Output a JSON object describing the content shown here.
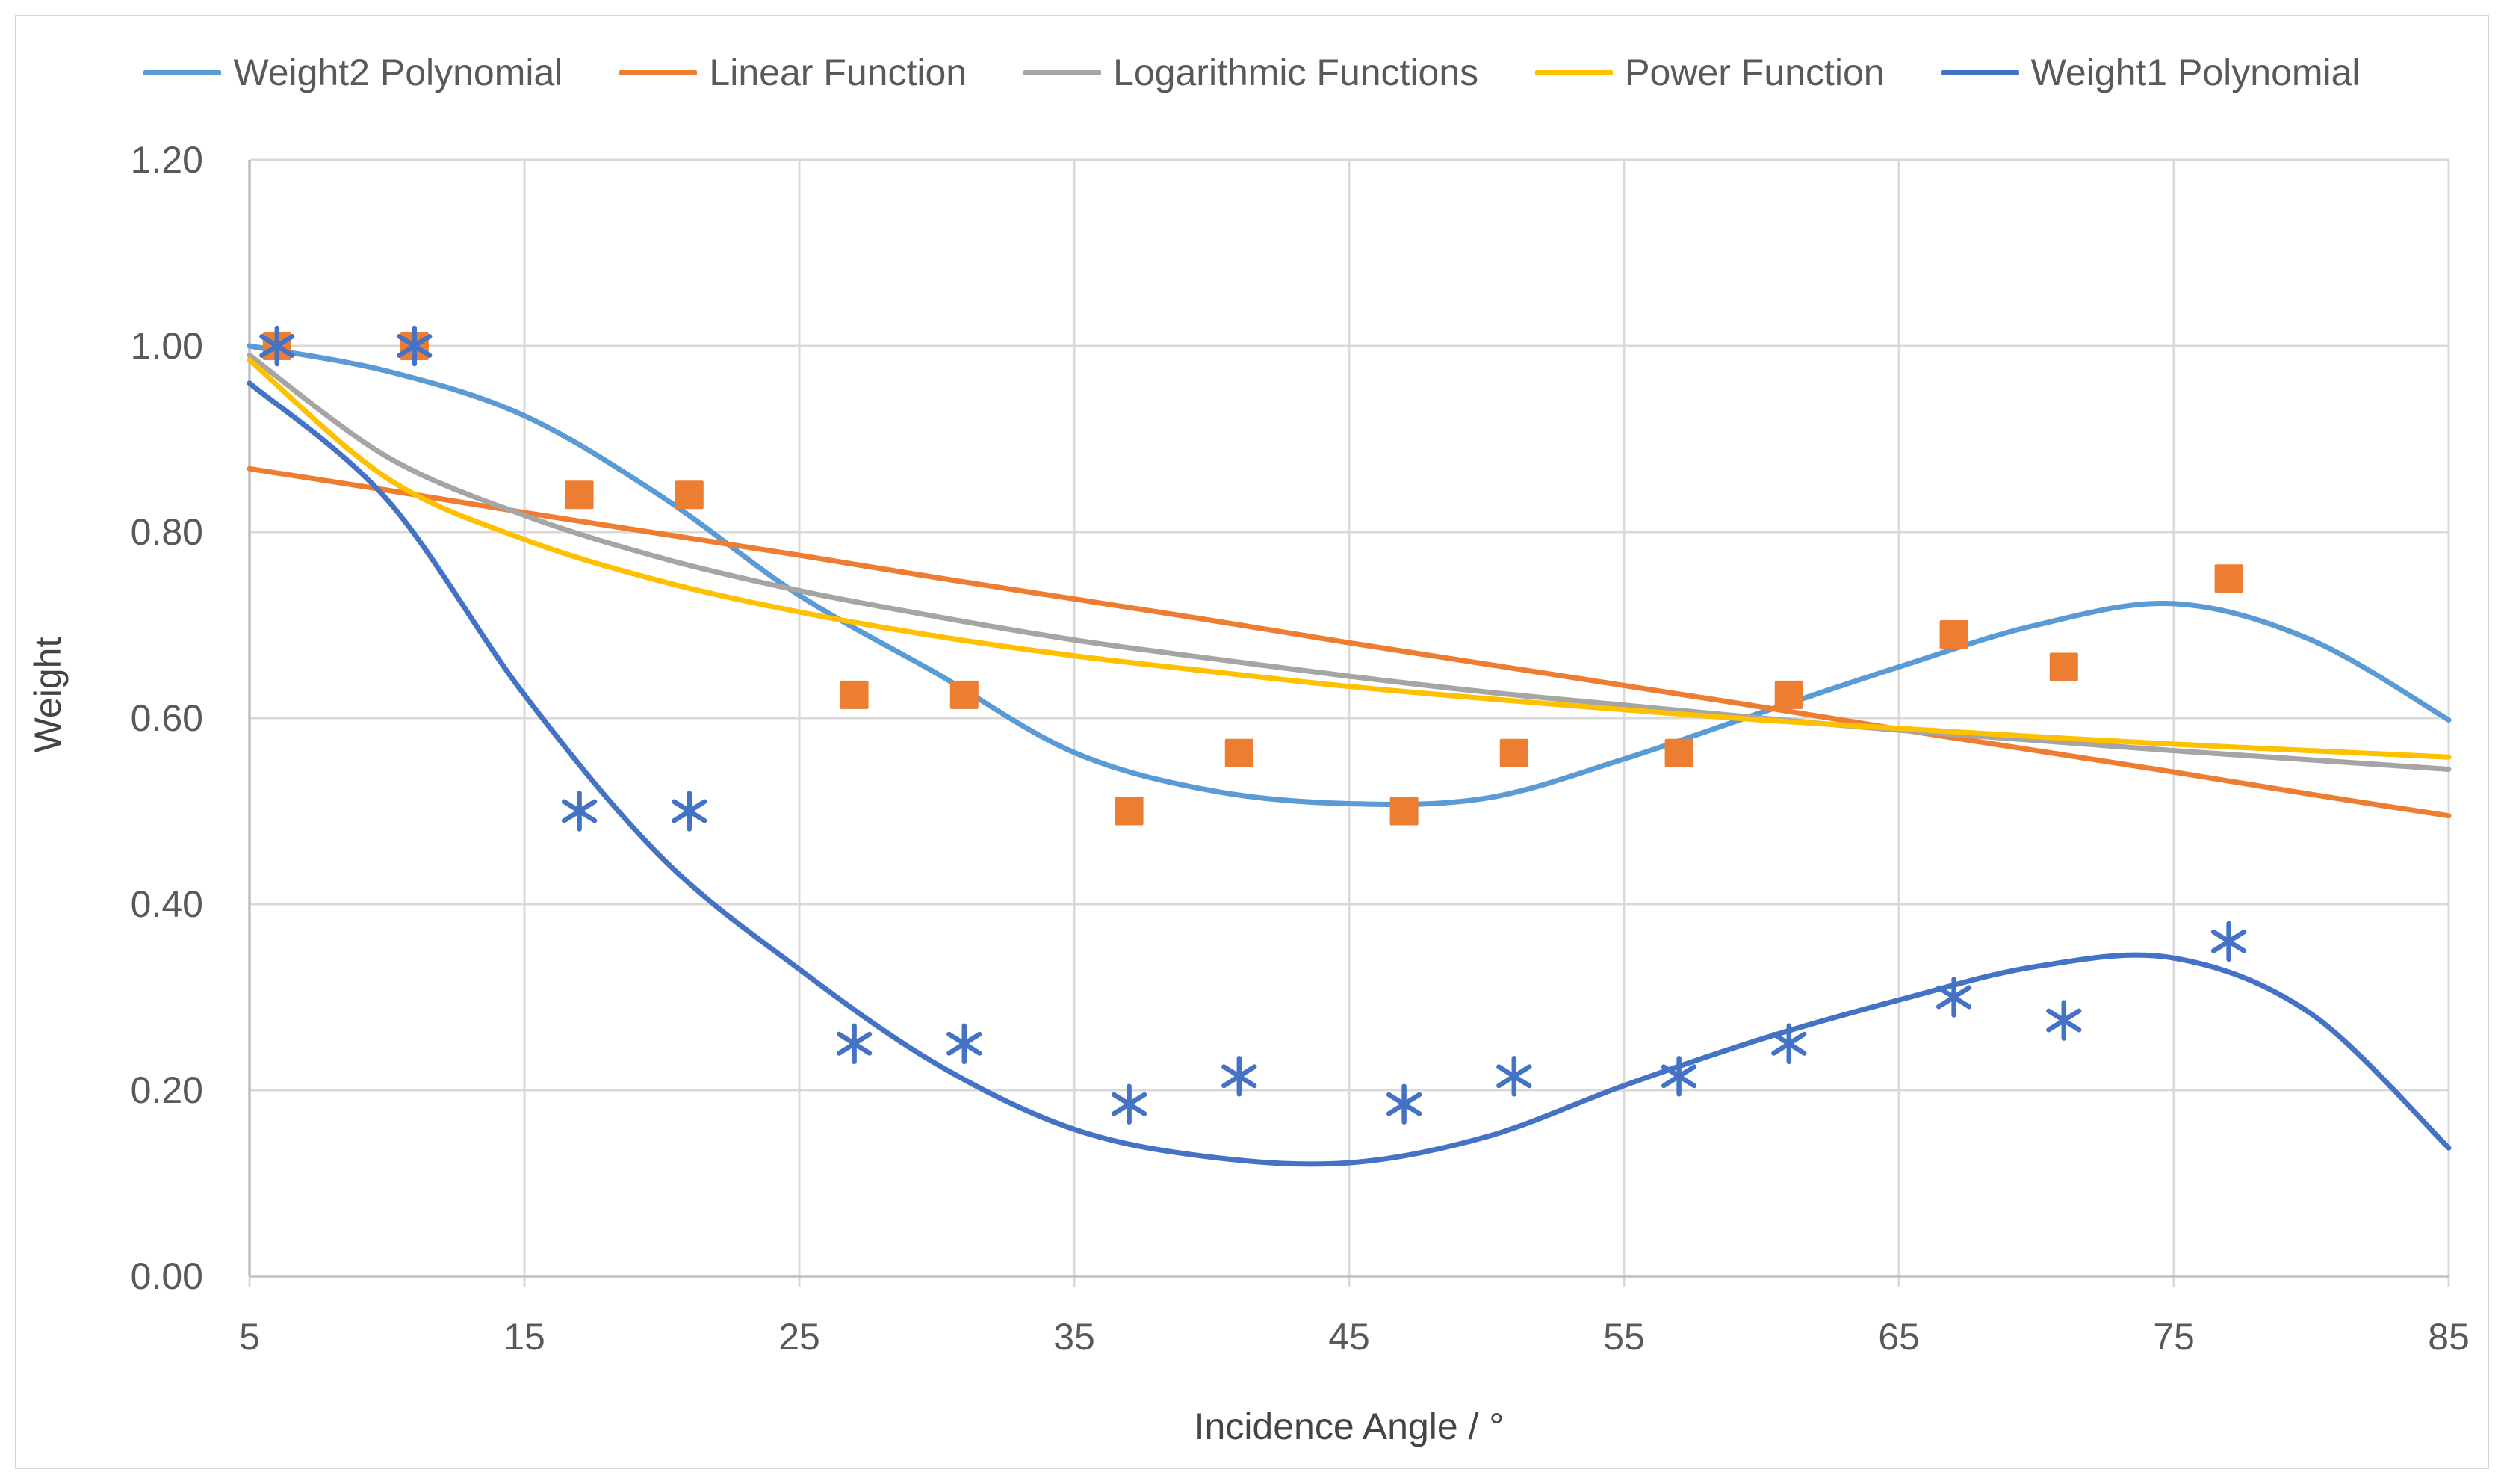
{
  "chart_data": {
    "type": "line",
    "title": "",
    "legend_position": "top",
    "grid": true,
    "x_axis": {
      "title": "Incidence Angle / °",
      "min": 5,
      "max": 85,
      "tick_values": [
        5,
        15,
        25,
        35,
        45,
        55,
        65,
        75,
        85
      ],
      "tick_labels": [
        "5",
        "15",
        "25",
        "35",
        "45",
        "55",
        "65",
        "75",
        "85"
      ]
    },
    "y_axis": {
      "title": "Weight",
      "min": 0.0,
      "max": 1.2,
      "tick_values": [
        1.2,
        1.0,
        0.8,
        0.6,
        0.4,
        0.2,
        0.0
      ],
      "tick_labels": [
        "1.20",
        "1.00",
        "0.80",
        "0.60",
        "0.40",
        "0.20",
        "0.00"
      ]
    },
    "curve_x": [
      5,
      10,
      15,
      20,
      25,
      30,
      35,
      40,
      45,
      50,
      55,
      60,
      65,
      70,
      75,
      80,
      85
    ],
    "series": [
      {
        "id": "weight2-polynomial",
        "name": "Weight2 Polynomial",
        "color": "#5B9BD5",
        "style": "curve",
        "values": [
          1.0,
          0.973,
          0.925,
          0.838,
          0.732,
          0.648,
          0.563,
          0.522,
          0.508,
          0.514,
          0.556,
          0.606,
          0.655,
          0.7,
          0.723,
          0.684,
          0.598
        ]
      },
      {
        "id": "linear-function",
        "name": "Linear Function",
        "color": "#ED7D31",
        "style": "curve",
        "values": [
          0.868,
          0.845,
          0.821,
          0.798,
          0.775,
          0.751,
          0.728,
          0.705,
          0.681,
          0.658,
          0.635,
          0.612,
          0.588,
          0.565,
          0.542,
          0.518,
          0.495
        ]
      },
      {
        "id": "logarithmic-functions",
        "name": "Logarithmic Functions",
        "color": "#A5A5A5",
        "style": "curve",
        "values": [
          0.99,
          0.881,
          0.818,
          0.772,
          0.737,
          0.709,
          0.684,
          0.664,
          0.645,
          0.628,
          0.614,
          0.6,
          0.587,
          0.576,
          0.565,
          0.555,
          0.545
        ]
      },
      {
        "id": "power-function",
        "name": "Power Function",
        "color": "#FFC000",
        "style": "curve",
        "values": [
          0.985,
          0.858,
          0.792,
          0.747,
          0.714,
          0.688,
          0.667,
          0.65,
          0.634,
          0.621,
          0.609,
          0.598,
          0.589,
          0.58,
          0.572,
          0.565,
          0.558
        ]
      },
      {
        "id": "weight1-polynomial",
        "name": "Weight1 Polynomial",
        "color": "#4472C4",
        "style": "curve",
        "values": [
          0.96,
          0.835,
          0.625,
          0.45,
          0.33,
          0.228,
          0.158,
          0.128,
          0.122,
          0.15,
          0.205,
          0.255,
          0.297,
          0.333,
          0.342,
          0.282,
          0.138
        ]
      }
    ],
    "scatter_series": [
      {
        "id": "weight2-data-points",
        "marker": "square",
        "color": "#ED7D31",
        "x": [
          6,
          11,
          17,
          21,
          27,
          31,
          37,
          41,
          47,
          51,
          57,
          61,
          67,
          71,
          77
        ],
        "y": [
          1.0,
          1.0,
          0.84,
          0.84,
          0.625,
          0.625,
          0.5,
          0.5625,
          0.5,
          0.5625,
          0.5625,
          0.625,
          0.69,
          0.655,
          0.75
        ]
      },
      {
        "id": "weight1-data-points",
        "marker": "asterisk",
        "color": "#4472C4",
        "x": [
          6,
          11,
          17,
          21,
          27,
          31,
          37,
          41,
          47,
          51,
          57,
          61,
          67,
          71,
          77
        ],
        "y": [
          1.0,
          1.0,
          0.5,
          0.5,
          0.25,
          0.25,
          0.185,
          0.215,
          0.185,
          0.215,
          0.215,
          0.25,
          0.3,
          0.275,
          0.36
        ]
      }
    ]
  },
  "colors": {
    "background": "#FFFFFF",
    "card_border": "#D6D6D6",
    "grid": "#D9D9D9",
    "axis": "#BFBFBF",
    "text": "#595959"
  }
}
